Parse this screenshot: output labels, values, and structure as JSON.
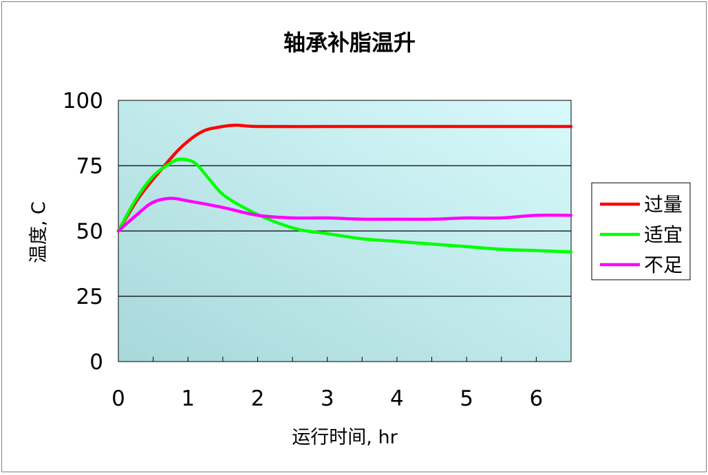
{
  "chart_data": {
    "type": "line",
    "title": "轴承补脂温升",
    "xlabel": "运行时间, hr",
    "ylabel": "温度, C",
    "xlim": [
      0,
      6.5
    ],
    "ylim": [
      0,
      100
    ],
    "x_ticks": [
      "0",
      "1",
      "2",
      "3",
      "4",
      "5",
      "6"
    ],
    "y_ticks": [
      "0",
      "25",
      "50",
      "75",
      "100"
    ],
    "grid": "horizontal",
    "legend_position": "right",
    "plot_background": "gradient #a8d8da to #d8fafc",
    "series": [
      {
        "name": "过量",
        "color": "#ff0000",
        "points": [
          [
            0,
            50
          ],
          [
            0.3,
            63
          ],
          [
            0.6,
            73
          ],
          [
            0.9,
            82
          ],
          [
            1.2,
            88
          ],
          [
            1.5,
            90
          ],
          [
            1.7,
            90.5
          ],
          [
            2,
            90
          ],
          [
            3,
            90
          ],
          [
            4,
            90
          ],
          [
            5,
            90
          ],
          [
            6,
            90
          ],
          [
            6.5,
            90
          ]
        ]
      },
      {
        "name": "适宜",
        "color": "#00ff00",
        "points": [
          [
            0,
            50
          ],
          [
            0.25,
            62
          ],
          [
            0.5,
            71
          ],
          [
            0.75,
            76
          ],
          [
            0.9,
            77.5
          ],
          [
            1.1,
            76
          ],
          [
            1.3,
            70
          ],
          [
            1.5,
            64
          ],
          [
            1.8,
            59
          ],
          [
            2.2,
            54
          ],
          [
            2.6,
            50.5
          ],
          [
            3,
            49
          ],
          [
            3.5,
            47
          ],
          [
            4,
            46
          ],
          [
            4.5,
            45
          ],
          [
            5,
            44
          ],
          [
            5.5,
            43
          ],
          [
            6,
            42.5
          ],
          [
            6.5,
            42
          ]
        ]
      },
      {
        "name": "不足",
        "color": "#ff00ff",
        "points": [
          [
            0,
            50
          ],
          [
            0.3,
            57
          ],
          [
            0.5,
            61
          ],
          [
            0.75,
            62.5
          ],
          [
            1,
            61.5
          ],
          [
            1.5,
            59
          ],
          [
            2,
            56
          ],
          [
            2.5,
            55
          ],
          [
            3,
            55
          ],
          [
            3.5,
            54.5
          ],
          [
            4,
            54.5
          ],
          [
            4.5,
            54.5
          ],
          [
            5,
            55
          ],
          [
            5.5,
            55
          ],
          [
            6,
            56
          ],
          [
            6.5,
            56
          ]
        ]
      }
    ]
  }
}
